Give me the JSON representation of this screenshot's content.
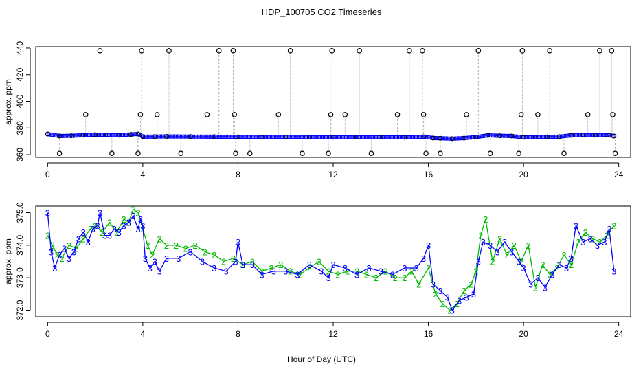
{
  "chart_data": {
    "title": "HDP_100705  CO2 Timeseries",
    "xlabel": "Hour of Day (UTC)",
    "colors": {
      "series3": "#0000ff",
      "series2": "#00bb00",
      "spike": "#aaaaaa",
      "point_outline": "#000000",
      "highlight": "#00ffff"
    },
    "panels": [
      {
        "type": "scatter",
        "ylabel": "approx. ppm",
        "xlim": [
          -0.5,
          24.5
        ],
        "ylim": [
          358,
          441
        ],
        "xticks": [
          0,
          4,
          8,
          12,
          16,
          20,
          24
        ],
        "yticks": [
          360,
          380,
          400,
          420,
          440
        ],
        "baseline_series": {
          "x": [
            0.0,
            0.5,
            1.0,
            1.5,
            2.0,
            2.5,
            3.0,
            3.5,
            3.8,
            4.0,
            4.5,
            5.0,
            6.0,
            7.0,
            8.0,
            9.0,
            10.0,
            11.0,
            12.0,
            13.0,
            14.0,
            15.0,
            15.8,
            16.2,
            16.5,
            17.0,
            17.5,
            18.0,
            18.5,
            19.0,
            19.5,
            20.0,
            20.5,
            21.0,
            21.5,
            22.0,
            22.5,
            23.0,
            23.5,
            23.8
          ],
          "y": [
            375.5,
            374.0,
            374.2,
            374.6,
            375.0,
            374.8,
            374.6,
            375.2,
            375.5,
            373.5,
            373.6,
            373.7,
            373.6,
            373.5,
            373.4,
            373.2,
            373.3,
            373.2,
            373.1,
            373.2,
            373.1,
            373.0,
            373.4,
            372.5,
            372.3,
            372.0,
            372.4,
            373.2,
            374.5,
            374.2,
            374.0,
            373.0,
            373.2,
            373.4,
            373.5,
            374.5,
            374.8,
            374.6,
            374.8,
            374.0
          ]
        },
        "outliers": [
          {
            "x": 0.5,
            "y": 361
          },
          {
            "x": 1.6,
            "y": 390
          },
          {
            "x": 2.2,
            "y": 438
          },
          {
            "x": 2.7,
            "y": 361
          },
          {
            "x": 3.8,
            "y": 361
          },
          {
            "x": 3.9,
            "y": 390
          },
          {
            "x": 3.95,
            "y": 438
          },
          {
            "x": 4.6,
            "y": 390
          },
          {
            "x": 5.1,
            "y": 438
          },
          {
            "x": 5.6,
            "y": 361
          },
          {
            "x": 6.7,
            "y": 390
          },
          {
            "x": 7.2,
            "y": 438
          },
          {
            "x": 7.8,
            "y": 438
          },
          {
            "x": 7.85,
            "y": 390
          },
          {
            "x": 7.9,
            "y": 361
          },
          {
            "x": 8.5,
            "y": 361
          },
          {
            "x": 9.7,
            "y": 390
          },
          {
            "x": 10.2,
            "y": 438
          },
          {
            "x": 10.7,
            "y": 361
          },
          {
            "x": 11.8,
            "y": 361
          },
          {
            "x": 11.9,
            "y": 390
          },
          {
            "x": 11.95,
            "y": 438
          },
          {
            "x": 12.5,
            "y": 390
          },
          {
            "x": 13.1,
            "y": 438
          },
          {
            "x": 13.6,
            "y": 361
          },
          {
            "x": 14.7,
            "y": 390
          },
          {
            "x": 15.2,
            "y": 438
          },
          {
            "x": 15.75,
            "y": 438
          },
          {
            "x": 15.8,
            "y": 390
          },
          {
            "x": 15.9,
            "y": 361
          },
          {
            "x": 16.5,
            "y": 361
          },
          {
            "x": 17.6,
            "y": 390
          },
          {
            "x": 18.1,
            "y": 438
          },
          {
            "x": 18.6,
            "y": 361
          },
          {
            "x": 19.8,
            "y": 361
          },
          {
            "x": 19.9,
            "y": 390
          },
          {
            "x": 19.95,
            "y": 438
          },
          {
            "x": 20.6,
            "y": 390
          },
          {
            "x": 21.1,
            "y": 438
          },
          {
            "x": 21.7,
            "y": 361
          },
          {
            "x": 22.7,
            "y": 390
          },
          {
            "x": 23.2,
            "y": 438
          },
          {
            "x": 23.7,
            "y": 438
          },
          {
            "x": 23.75,
            "y": 390
          },
          {
            "x": 23.85,
            "y": 361
          }
        ]
      },
      {
        "type": "line",
        "ylabel": "approx. ppm",
        "xlim": [
          -0.5,
          24.5
        ],
        "ylim": [
          371.8,
          375.2
        ],
        "xticks": [
          0,
          4,
          8,
          12,
          16,
          20,
          24
        ],
        "yticks": [
          "372.0",
          "373.0",
          "374.0",
          "375.0"
        ],
        "series": [
          {
            "marker": "3",
            "x": [
              0.0,
              0.15,
              0.3,
              0.5,
              0.7,
              0.9,
              1.1,
              1.3,
              1.5,
              1.7,
              1.9,
              2.1,
              2.2,
              2.4,
              2.6,
              2.8,
              3.0,
              3.2,
              3.4,
              3.6,
              3.8,
              3.9,
              4.0,
              4.1,
              4.3,
              4.5,
              4.7,
              5.0,
              5.5,
              6.0,
              6.5,
              7.0,
              7.5,
              7.9,
              8.0,
              8.2,
              8.6,
              9.0,
              9.5,
              10.0,
              10.5,
              11.0,
              11.5,
              11.8,
              12.0,
              12.5,
              13.0,
              13.5,
              14.0,
              14.5,
              15.0,
              15.5,
              15.8,
              16.0,
              16.2,
              16.5,
              16.8,
              17.0,
              17.3,
              17.6,
              17.9,
              18.1,
              18.3,
              18.6,
              18.9,
              19.2,
              19.5,
              19.8,
              20.0,
              20.3,
              20.6,
              20.9,
              21.2,
              21.5,
              21.8,
              22.0,
              22.2,
              22.5,
              22.8,
              23.1,
              23.4,
              23.6,
              23.8
            ],
            "y": [
              375.0,
              373.8,
              373.3,
              373.7,
              373.9,
              373.6,
              373.8,
              374.2,
              374.4,
              374.1,
              374.5,
              374.6,
              375.0,
              374.3,
              374.3,
              374.5,
              374.4,
              374.6,
              374.7,
              374.9,
              374.5,
              374.8,
              374.6,
              373.6,
              373.3,
              373.5,
              373.2,
              373.6,
              373.6,
              373.8,
              373.5,
              373.3,
              373.2,
              373.5,
              374.1,
              373.4,
              373.4,
              373.1,
              373.2,
              373.2,
              373.1,
              373.4,
              373.2,
              373.0,
              373.4,
              373.3,
              373.1,
              373.3,
              373.2,
              373.1,
              373.3,
              373.3,
              373.6,
              374.0,
              372.8,
              372.6,
              372.4,
              372.0,
              372.3,
              372.4,
              372.5,
              373.5,
              374.1,
              374.0,
              373.8,
              374.1,
              373.8,
              373.5,
              373.3,
              372.8,
              373.0,
              372.7,
              373.1,
              373.4,
              373.3,
              373.6,
              374.6,
              374.1,
              374.2,
              374.0,
              374.1,
              374.5,
              373.2
            ]
          },
          {
            "marker": "2",
            "x": [
              0.0,
              0.2,
              0.4,
              0.6,
              0.9,
              1.2,
              1.5,
              1.8,
              2.0,
              2.3,
              2.6,
              2.9,
              3.2,
              3.4,
              3.6,
              3.8,
              4.0,
              4.2,
              4.4,
              4.7,
              5.0,
              5.4,
              5.8,
              6.2,
              6.6,
              7.0,
              7.4,
              7.8,
              8.2,
              8.6,
              9.0,
              9.4,
              9.8,
              10.2,
              10.6,
              11.0,
              11.4,
              11.8,
              12.2,
              12.6,
              13.0,
              13.4,
              13.8,
              14.2,
              14.6,
              15.0,
              15.3,
              15.6,
              16.0,
              16.3,
              16.6,
              16.9,
              17.2,
              17.5,
              17.8,
              18.0,
              18.2,
              18.4,
              18.7,
              19.0,
              19.3,
              19.6,
              19.9,
              20.2,
              20.5,
              20.8,
              21.1,
              21.4,
              21.7,
              22.0,
              22.3,
              22.6,
              22.9,
              23.2,
              23.5,
              23.8
            ],
            "y": [
              374.3,
              374.0,
              373.7,
              373.6,
              374.0,
              373.9,
              374.2,
              374.5,
              374.6,
              374.4,
              374.7,
              374.4,
              374.8,
              374.7,
              375.1,
              375.0,
              374.5,
              374.0,
              373.7,
              374.2,
              374.0,
              374.0,
              373.9,
              374.0,
              373.8,
              373.7,
              373.5,
              373.6,
              373.4,
              373.5,
              373.2,
              373.3,
              373.4,
              373.2,
              373.1,
              373.3,
              373.5,
              373.2,
              373.1,
              373.2,
              373.2,
              373.1,
              373.0,
              373.2,
              373.0,
              373.0,
              373.2,
              372.8,
              373.3,
              372.5,
              372.2,
              372.0,
              372.2,
              372.6,
              372.8,
              373.2,
              374.3,
              374.8,
              373.5,
              374.2,
              373.7,
              374.0,
              373.5,
              374.0,
              372.7,
              373.4,
              373.1,
              373.3,
              373.7,
              373.4,
              374.1,
              374.4,
              374.2,
              374.1,
              374.3,
              374.6
            ]
          }
        ]
      }
    ]
  }
}
